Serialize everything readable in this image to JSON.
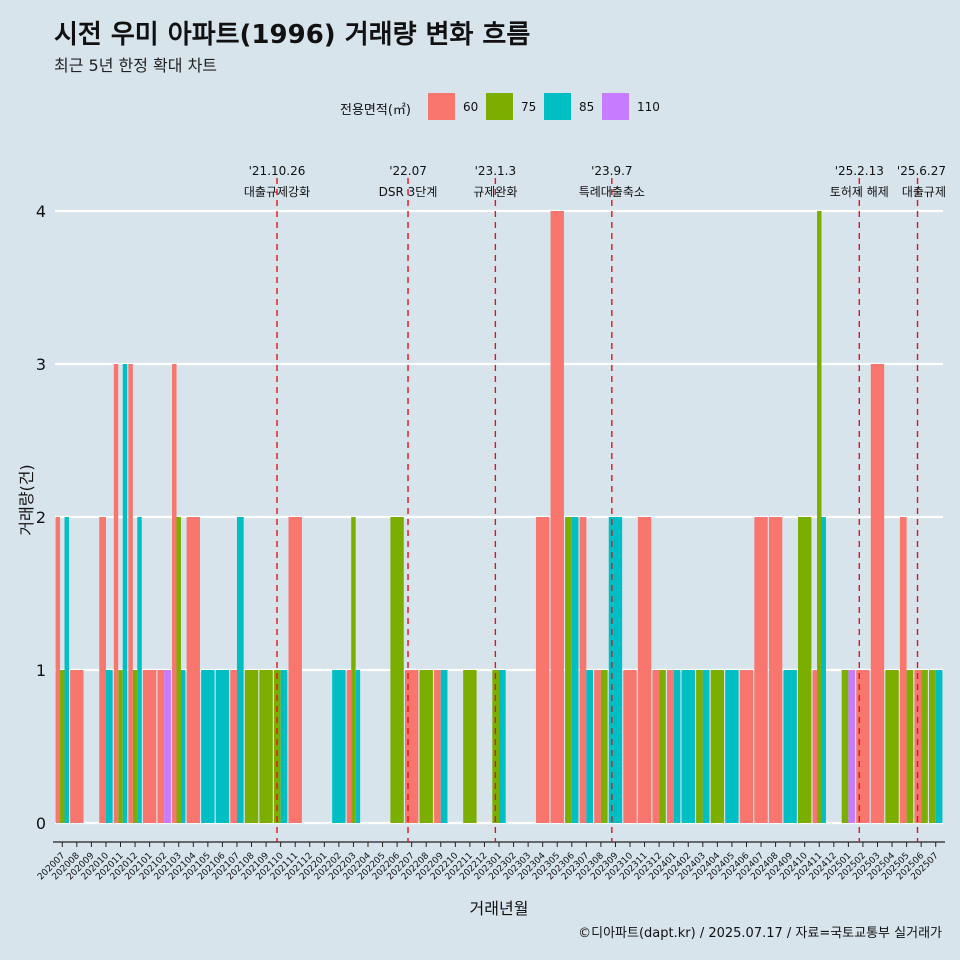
{
  "title": "시전 우미 아파트(1996) 거래량 변화 흐름",
  "subtitle": "최근 5년 한정 확대 차트",
  "caption": "©디아파트(dapt.kr) / 2025.07.17 / 자료=국토교통부 실거래가",
  "legend": {
    "title": "전용면적(㎡)",
    "items": [
      {
        "label": "60",
        "color": "#f8766d"
      },
      {
        "label": "75",
        "color": "#7cae00"
      },
      {
        "label": "85",
        "color": "#00bfc4"
      },
      {
        "label": "110",
        "color": "#c77cff"
      }
    ]
  },
  "chart_data": {
    "type": "bar",
    "xlabel": "거래년월",
    "ylabel": "거래량(건)",
    "ylim": [
      0,
      4
    ],
    "yticks": [
      0,
      1,
      2,
      3,
      4
    ],
    "grid": true,
    "legend_position": "top",
    "categories": [
      "202007",
      "202008",
      "202009",
      "202010",
      "202011",
      "202012",
      "202101",
      "202102",
      "202103",
      "202104",
      "202105",
      "202106",
      "202107",
      "202108",
      "202109",
      "202110",
      "202111",
      "202112",
      "202201",
      "202202",
      "202203",
      "202204",
      "202205",
      "202206",
      "202207",
      "202208",
      "202209",
      "202210",
      "202211",
      "202212",
      "202301",
      "202302",
      "202303",
      "202304",
      "202305",
      "202306",
      "202307",
      "202308",
      "202309",
      "202310",
      "202311",
      "202312",
      "202401",
      "202402",
      "202403",
      "202404",
      "202405",
      "202406",
      "202407",
      "202408",
      "202409",
      "202410",
      "202411",
      "202412",
      "202501",
      "202502",
      "202503",
      "202504",
      "202505",
      "202506",
      "202507"
    ],
    "series": [
      {
        "name": "60",
        "values": [
          2,
          1,
          0,
          2,
          3,
          3,
          1,
          1,
          3,
          2,
          0,
          0,
          1,
          0,
          0,
          0,
          2,
          0,
          0,
          0,
          1,
          0,
          0,
          0,
          1,
          0,
          1,
          0,
          0,
          0,
          0,
          0,
          0,
          2,
          4,
          0,
          2,
          1,
          0,
          1,
          2,
          1,
          1,
          0,
          0,
          0,
          0,
          1,
          2,
          2,
          0,
          0,
          1,
          0,
          0,
          1,
          3,
          0,
          2,
          1,
          0
        ]
      },
      {
        "name": "75",
        "values": [
          1,
          0,
          0,
          0,
          1,
          1,
          0,
          0,
          2,
          0,
          0,
          0,
          0,
          1,
          1,
          1,
          0,
          0,
          0,
          0,
          2,
          0,
          0,
          2,
          0,
          1,
          0,
          0,
          1,
          0,
          1,
          0,
          0,
          0,
          0,
          2,
          0,
          1,
          0,
          0,
          0,
          1,
          0,
          0,
          1,
          1,
          0,
          0,
          0,
          0,
          0,
          2,
          4,
          0,
          1,
          0,
          0,
          1,
          1,
          1,
          1
        ]
      },
      {
        "name": "85",
        "values": [
          2,
          0,
          0,
          1,
          3,
          2,
          0,
          0,
          1,
          0,
          1,
          1,
          2,
          0,
          0,
          1,
          0,
          0,
          0,
          1,
          1,
          0,
          0,
          0,
          0,
          0,
          1,
          0,
          0,
          0,
          1,
          0,
          0,
          0,
          0,
          2,
          1,
          0,
          2,
          0,
          0,
          0,
          1,
          1,
          1,
          0,
          1,
          0,
          0,
          0,
          1,
          0,
          2,
          0,
          0,
          0,
          0,
          0,
          0,
          0,
          1
        ]
      },
      {
        "name": "110",
        "values": [
          0,
          0,
          0,
          0,
          0,
          0,
          0,
          1,
          0,
          0,
          0,
          0,
          0,
          0,
          0,
          0,
          0,
          0,
          0,
          0,
          0,
          0,
          0,
          0,
          0,
          0,
          0,
          0,
          0,
          0,
          0,
          0,
          0,
          0,
          0,
          0,
          0,
          0,
          0,
          0,
          0,
          0,
          0,
          0,
          0,
          0,
          0,
          0,
          0,
          0,
          0,
          0,
          0,
          0,
          1,
          0,
          0,
          0,
          0,
          0,
          0
        ]
      }
    ],
    "annotations": [
      {
        "date": "'21.10.26",
        "text": "대출규제강화",
        "month": "202110"
      },
      {
        "date": "'22.07",
        "text": "DSR 3단계",
        "month": "202207"
      },
      {
        "date": "'23.1.3",
        "text": "규제완화",
        "month": "202301"
      },
      {
        "date": "'23.9.7",
        "text": "특례대출축소",
        "month": "202309"
      },
      {
        "date": "'25.2.13",
        "text": "토허제 해제",
        "month": "202502"
      },
      {
        "date": "'25.6.27",
        "text": "대출규제",
        "month": "202506"
      }
    ]
  }
}
